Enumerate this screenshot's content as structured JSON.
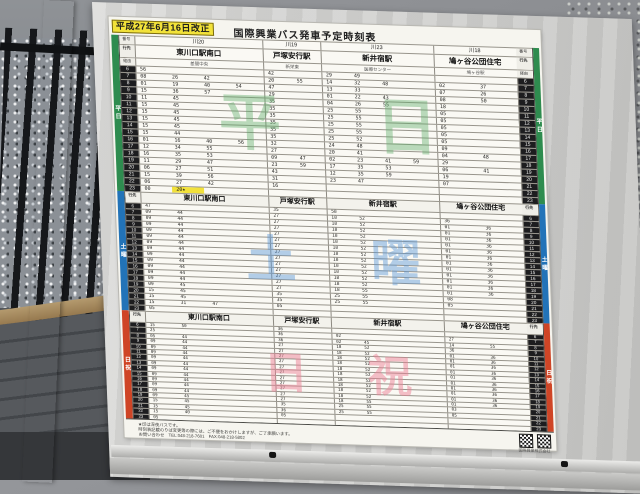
{
  "sign": {
    "revision": "平成27年6月16日改正",
    "title": "国際興業バス発車予定時刻表",
    "corner_labels": {
      "number": "番号",
      "destination": "行先",
      "via": "経由"
    },
    "routes": [
      {
        "number": "川20",
        "destination": "東川口駅南口",
        "via": "差間中央",
        "slots": 4
      },
      {
        "number": "川19",
        "destination": "戸塚安行駅",
        "via": "新栄東",
        "slots": 2
      },
      {
        "number": "川23",
        "destination": "新井宿駅",
        "via": "医療センター",
        "slots": 4
      },
      {
        "number": "川18",
        "destination": "鳩ヶ谷公団住宅",
        "via": "鳩ヶ谷駅",
        "slots": 2
      }
    ],
    "sections": [
      {
        "id": "weekday",
        "label": "平日",
        "watermark": "平日",
        "band_color": "#2e8c4f",
        "watermark_color": "rgba(95,175,105,0.42)",
        "rows": [
          {
            "h": "6",
            "c": [
              [
                "56"
              ],
              [
                "42"
              ],
              [
                "29",
                "49"
              ],
              []
            ]
          },
          {
            "h": "7",
            "c": [
              [
                "08",
                "26",
                "42"
              ],
              [
                "20",
                "55"
              ],
              [
                "14",
                "32",
                "48"
              ],
              [
                "02",
                "37"
              ]
            ]
          },
          {
            "h": "8",
            "c": [
              [
                "01",
                "19",
                "40",
                "54"
              ],
              [
                "47"
              ],
              [
                "13",
                "33"
              ],
              [
                "07",
                "26"
              ]
            ]
          },
          {
            "h": "9",
            "c": [
              [
                "15",
                "36",
                "57"
              ],
              [
                "29"
              ],
              [
                "01",
                "22",
                "43"
              ],
              [
                "08",
                "50"
              ]
            ]
          },
          {
            "h": "10",
            "c": [
              [
                "11",
                "45"
              ],
              [
                "35"
              ],
              [
                "04",
                "26",
                "55"
              ],
              [
                "18"
              ]
            ]
          },
          {
            "h": "11",
            "c": [
              [
                "15",
                "45"
              ],
              [
                "35"
              ],
              [
                "25",
                "55"
              ],
              [
                "05"
              ]
            ]
          },
          {
            "h": "12",
            "c": [
              [
                "15",
                "45"
              ],
              [
                "35"
              ],
              [
                "25",
                "55"
              ],
              [
                "05"
              ]
            ]
          },
          {
            "h": "13",
            "c": [
              [
                "15",
                "45"
              ],
              [
                "35"
              ],
              [
                "25",
                "55"
              ],
              [
                "05"
              ]
            ]
          },
          {
            "h": "14",
            "c": [
              [
                "15",
                "45"
              ],
              [
                "35"
              ],
              [
                "25",
                "55"
              ],
              [
                "05"
              ]
            ]
          },
          {
            "h": "15",
            "c": [
              [
                "15",
                "44"
              ],
              [
                "35"
              ],
              [
                "25",
                "52"
              ],
              [
                "05"
              ]
            ]
          },
          {
            "h": "16",
            "c": [
              [
                "01",
                "16",
                "40",
                "56"
              ],
              [
                "32"
              ],
              [
                "24",
                "48"
              ],
              [
                "09"
              ]
            ]
          },
          {
            "h": "17",
            "c": [
              [
                "12",
                "34",
                "55"
              ],
              [
                "27"
              ],
              [
                "20",
                "41"
              ],
              [
                "04",
                "48"
              ]
            ]
          },
          {
            "h": "18",
            "c": [
              [
                "16",
                "35",
                "53"
              ],
              [
                "09",
                "47"
              ],
              [
                "02",
                "23",
                "41",
                "59"
              ],
              [
                "29"
              ]
            ]
          },
          {
            "h": "19",
            "c": [
              [
                "11",
                "29",
                "47"
              ],
              [
                "23",
                "59"
              ],
              [
                "17",
                "35",
                "53"
              ],
              [
                "06",
                "41"
              ]
            ]
          },
          {
            "h": "20",
            "c": [
              [
                "06",
                "27",
                "51"
              ],
              [
                "43"
              ],
              [
                "12",
                "35",
                "59"
              ],
              [
                "19"
              ]
            ]
          },
          {
            "h": "21",
            "c": [
              [
                "15",
                "39",
                "56"
              ],
              [
                "31"
              ],
              [
                "23",
                "47"
              ],
              [
                "07"
              ]
            ]
          },
          {
            "h": "22",
            "c": [
              [
                "06",
                "27",
                "42"
              ],
              [
                "16"
              ],
              [],
              []
            ]
          },
          {
            "h": "23",
            "c": [
              [
                "00",
                "20★"
              ],
              [],
              [],
              []
            ]
          }
        ]
      },
      {
        "id": "saturday",
        "label": "土曜",
        "watermark": "土曜",
        "band_color": "#2273b8",
        "watermark_color": "rgba(90,150,215,0.45)",
        "rows": [
          {
            "h": "6",
            "c": [
              [
                "47"
              ],
              [
                "35"
              ],
              [
                "58"
              ],
              []
            ]
          },
          {
            "h": "7",
            "c": [
              [
                "09",
                "44"
              ],
              [
                "27"
              ],
              [
                "18",
                "52"
              ],
              [
                "36"
              ]
            ]
          },
          {
            "h": "8",
            "c": [
              [
                "09",
                "44"
              ],
              [
                "27"
              ],
              [
                "18",
                "52"
              ],
              [
                "01",
                "36"
              ]
            ]
          },
          {
            "h": "9",
            "c": [
              [
                "09",
                "44"
              ],
              [
                "27"
              ],
              [
                "18",
                "52"
              ],
              [
                "01",
                "36"
              ]
            ]
          },
          {
            "h": "10",
            "c": [
              [
                "09",
                "44"
              ],
              [
                "27"
              ],
              [
                "18",
                "52"
              ],
              [
                "01",
                "36"
              ]
            ]
          },
          {
            "h": "11",
            "c": [
              [
                "09",
                "44"
              ],
              [
                "27"
              ],
              [
                "18",
                "52"
              ],
              [
                "01",
                "36"
              ]
            ]
          },
          {
            "h": "12",
            "c": [
              [
                "09",
                "44"
              ],
              [
                "27"
              ],
              [
                "18",
                "52"
              ],
              [
                "01",
                "36"
              ]
            ]
          },
          {
            "h": "13",
            "c": [
              [
                "09",
                "44"
              ],
              [
                "27"
              ],
              [
                "18",
                "52"
              ],
              [
                "01",
                "36"
              ]
            ]
          },
          {
            "h": "14",
            "c": [
              [
                "09",
                "44"
              ],
              [
                "27"
              ],
              [
                "18",
                "52"
              ],
              [
                "01",
                "36"
              ]
            ]
          },
          {
            "h": "15",
            "c": [
              [
                "09",
                "44"
              ],
              [
                "27"
              ],
              [
                "18",
                "52"
              ],
              [
                "01",
                "36"
              ]
            ]
          },
          {
            "h": "16",
            "c": [
              [
                "09",
                "44"
              ],
              [
                "27"
              ],
              [
                "18",
                "52"
              ],
              [
                "01",
                "36"
              ]
            ]
          },
          {
            "h": "17",
            "c": [
              [
                "09",
                "44"
              ],
              [
                "27"
              ],
              [
                "18",
                "52"
              ],
              [
                "01",
                "36"
              ]
            ]
          },
          {
            "h": "18",
            "c": [
              [
                "09",
                "44"
              ],
              [
                "27"
              ],
              [
                "18",
                "52"
              ],
              [
                "01",
                "36"
              ]
            ]
          },
          {
            "h": "19",
            "c": [
              [
                "09",
                "45"
              ],
              [
                "27"
              ],
              [
                "18",
                "55"
              ],
              [
                "01",
                "36"
              ]
            ]
          },
          {
            "h": "20",
            "c": [
              [
                "15",
                "45"
              ],
              [
                "35"
              ],
              [
                "25",
                "55"
              ],
              [
                "08"
              ]
            ]
          },
          {
            "h": "21",
            "c": [
              [
                "15",
                "45"
              ],
              [
                "35"
              ],
              [
                "25",
                "55"
              ],
              [
                "05"
              ]
            ]
          },
          {
            "h": "22",
            "c": [
              [
                "15",
                "31",
                "47"
              ],
              [
                "05"
              ],
              [],
              []
            ]
          },
          {
            "h": "23",
            "c": [
              [
                "05"
              ],
              [],
              [],
              []
            ]
          }
        ]
      },
      {
        "id": "sunday",
        "label": "日祝",
        "watermark": "日祝",
        "band_color": "#cf4526",
        "watermark_color": "rgba(235,130,150,0.5)",
        "rows": [
          {
            "h": "6",
            "c": [
              [
                "15",
                "50"
              ],
              [
                "36"
              ],
              [],
              []
            ]
          },
          {
            "h": "7",
            "c": [
              [
                "25"
              ],
              [
                "36"
              ],
              [
                "02"
              ],
              [
                "27"
              ]
            ]
          },
          {
            "h": "8",
            "c": [
              [
                "05",
                "44"
              ],
              [
                "36"
              ],
              [
                "02",
                "45"
              ],
              [
                "14",
                "55"
              ]
            ]
          },
          {
            "h": "9",
            "c": [
              [
                "09",
                "44"
              ],
              [
                "27"
              ],
              [
                "18",
                "52"
              ],
              [
                "36"
              ]
            ]
          },
          {
            "h": "10",
            "c": [
              [
                "09",
                "44"
              ],
              [
                "27"
              ],
              [
                "18",
                "52"
              ],
              [
                "01",
                "36"
              ]
            ]
          },
          {
            "h": "11",
            "c": [
              [
                "09",
                "44"
              ],
              [
                "27"
              ],
              [
                "18",
                "52"
              ],
              [
                "01",
                "36"
              ]
            ]
          },
          {
            "h": "12",
            "c": [
              [
                "09",
                "44"
              ],
              [
                "27"
              ],
              [
                "18",
                "52"
              ],
              [
                "01",
                "36"
              ]
            ]
          },
          {
            "h": "13",
            "c": [
              [
                "09",
                "44"
              ],
              [
                "27"
              ],
              [
                "18",
                "52"
              ],
              [
                "01",
                "36"
              ]
            ]
          },
          {
            "h": "14",
            "c": [
              [
                "09",
                "44"
              ],
              [
                "27"
              ],
              [
                "18",
                "52"
              ],
              [
                "01",
                "36"
              ]
            ]
          },
          {
            "h": "15",
            "c": [
              [
                "09",
                "44"
              ],
              [
                "27"
              ],
              [
                "18",
                "52"
              ],
              [
                "01",
                "36"
              ]
            ]
          },
          {
            "h": "16",
            "c": [
              [
                "09",
                "44"
              ],
              [
                "27"
              ],
              [
                "18",
                "52"
              ],
              [
                "01",
                "36"
              ]
            ]
          },
          {
            "h": "17",
            "c": [
              [
                "09",
                "44"
              ],
              [
                "27"
              ],
              [
                "18",
                "52"
              ],
              [
                "01",
                "36"
              ]
            ]
          },
          {
            "h": "18",
            "c": [
              [
                "09",
                "44"
              ],
              [
                "27"
              ],
              [
                "18",
                "52"
              ],
              [
                "01",
                "36"
              ]
            ]
          },
          {
            "h": "19",
            "c": [
              [
                "09",
                "45"
              ],
              [
                "27"
              ],
              [
                "18",
                "55"
              ],
              [
                "01",
                "36"
              ]
            ]
          },
          {
            "h": "20",
            "c": [
              [
                "15",
                "45"
              ],
              [
                "35"
              ],
              [
                "25",
                "55"
              ],
              [
                "03"
              ]
            ]
          },
          {
            "h": "21",
            "c": [
              [
                "15",
                "45"
              ],
              [
                "36"
              ],
              [
                "25",
                "55"
              ],
              [
                "05"
              ]
            ]
          },
          {
            "h": "22",
            "c": [
              [
                "15",
                "40"
              ],
              [
                "05"
              ],
              [],
              []
            ]
          },
          {
            "h": "23",
            "c": [
              [
                "05"
              ],
              [],
              [],
              []
            ]
          }
        ]
      }
    ],
    "notes": [
      "★印は深夜バスです。",
      "時刻表記載のりば変更等の際には、ご不便をおかけしますが、ご了承願います。",
      "お問い合わせ　TEL:048-218-7601　FAX:048-218-5802"
    ],
    "footer": "国際興業株式会社"
  }
}
